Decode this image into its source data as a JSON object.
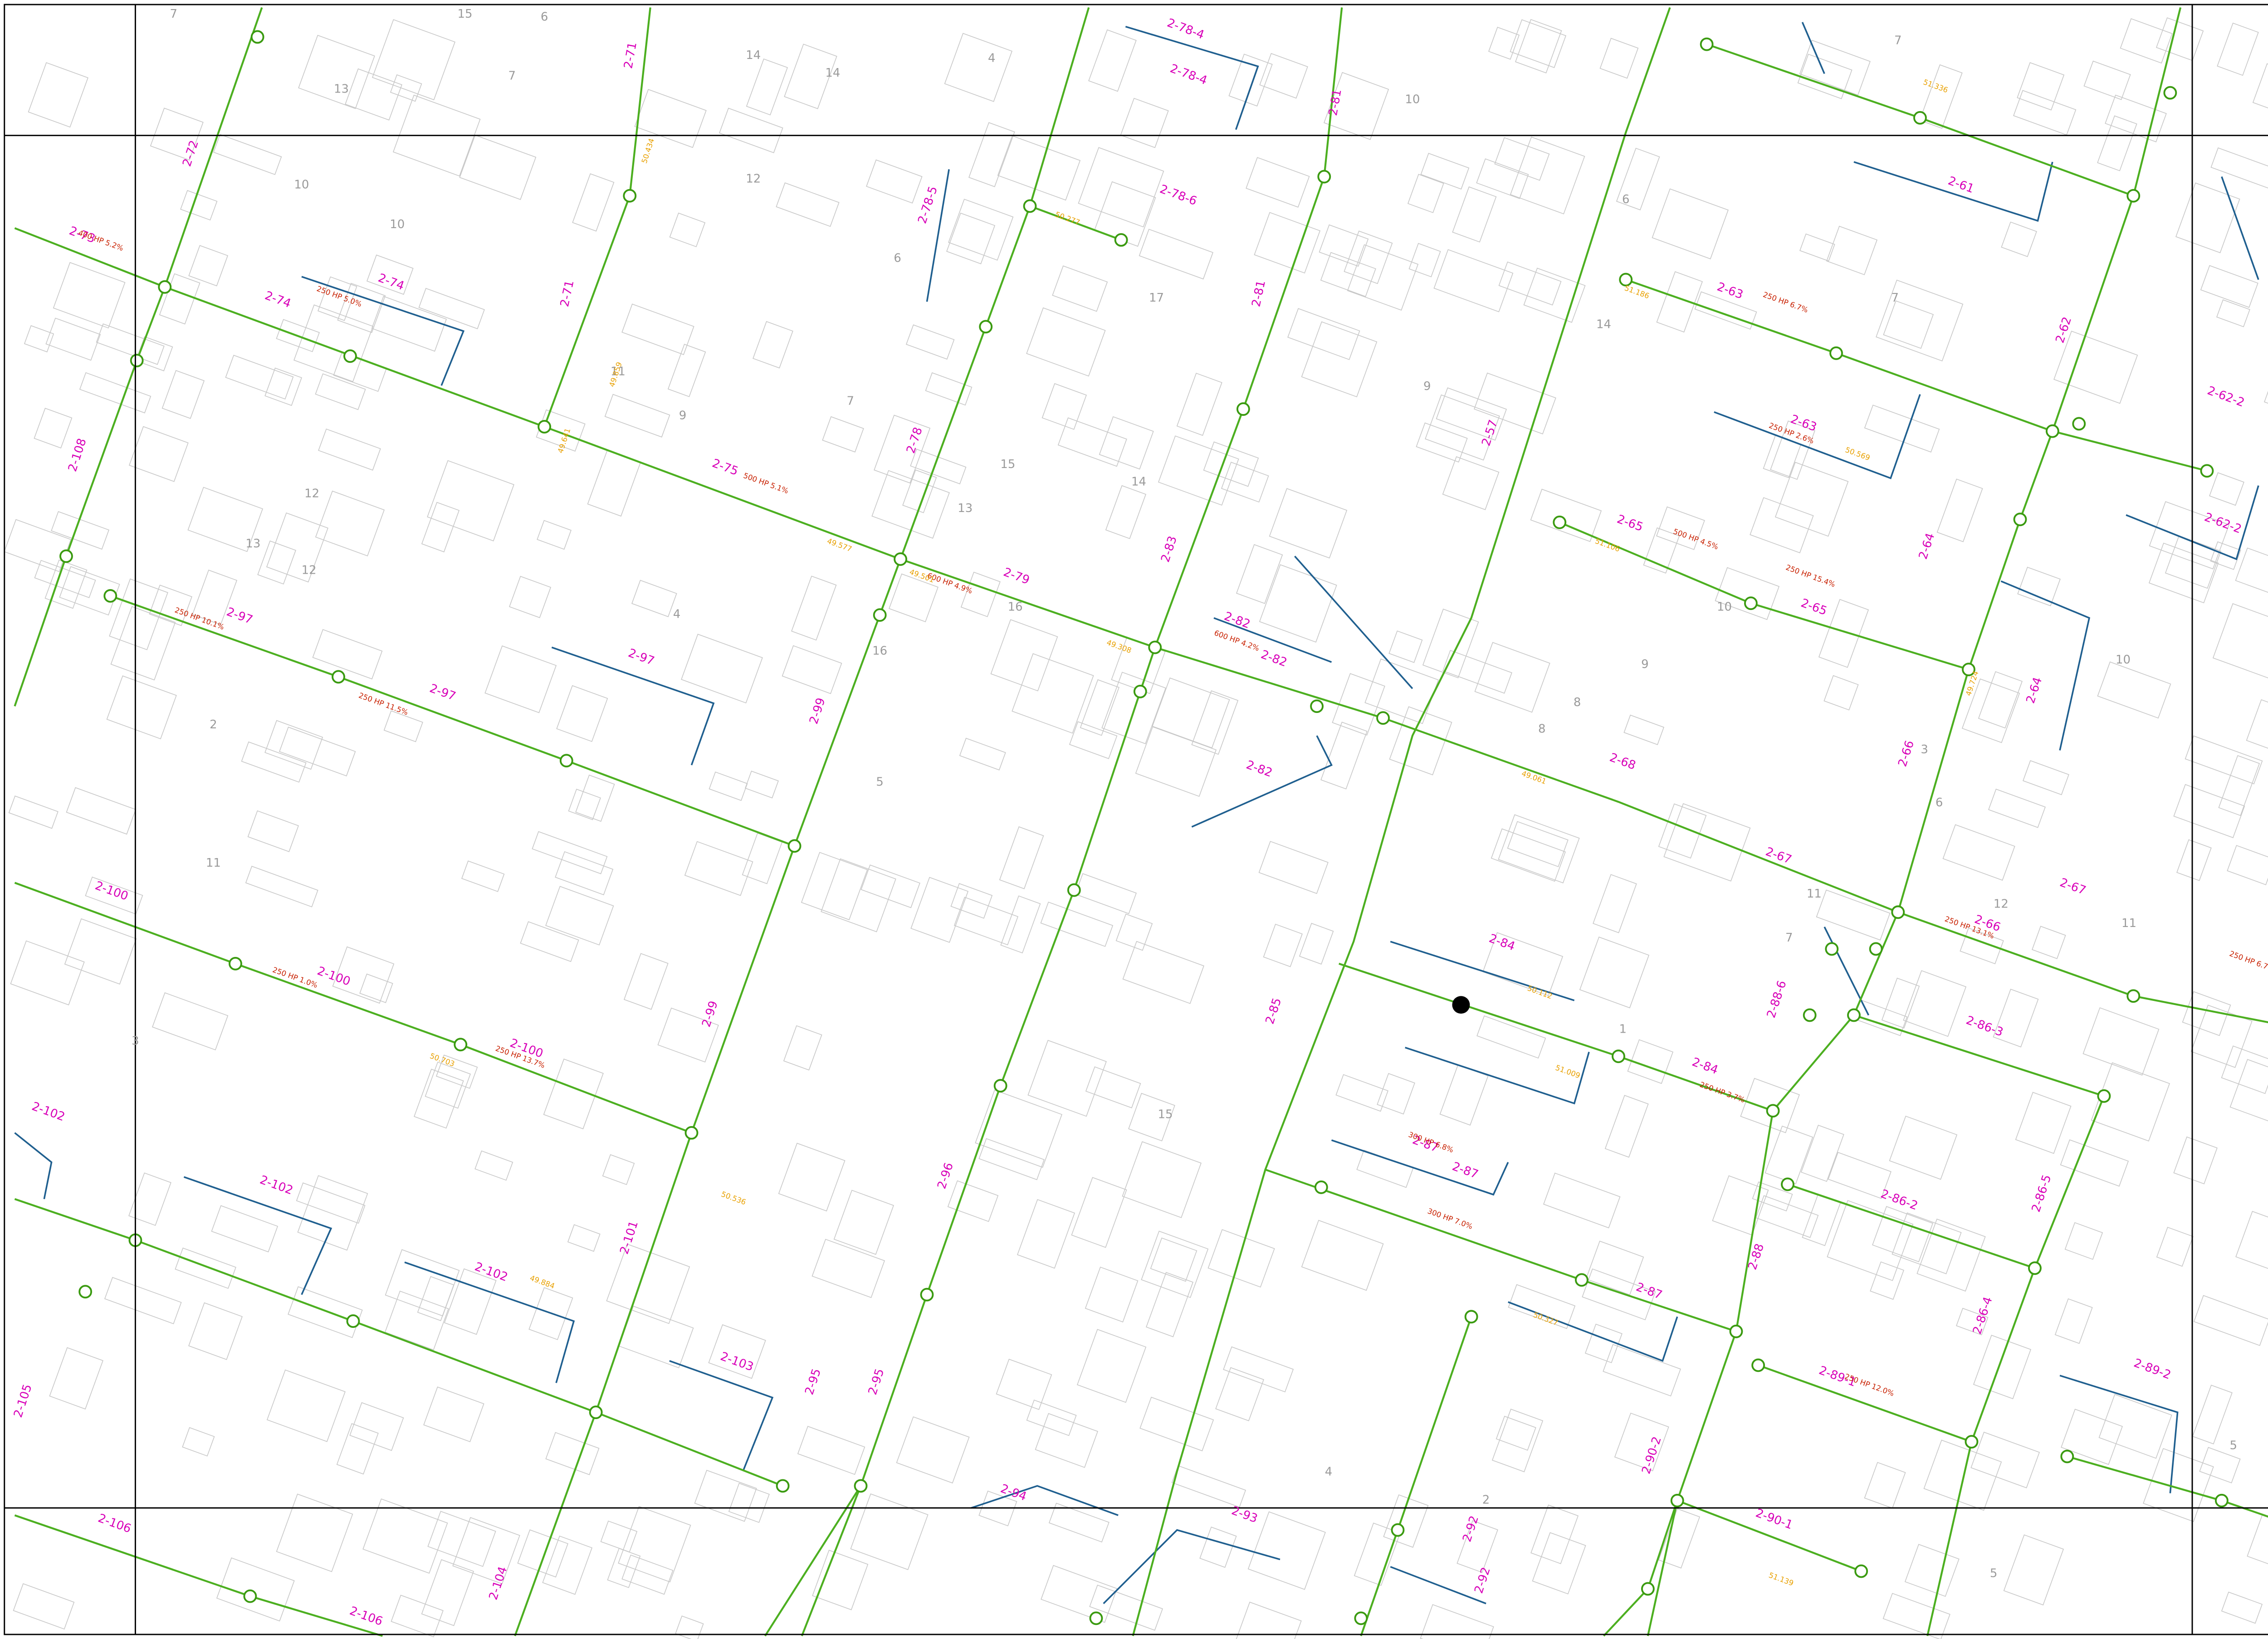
{
  "pipe_labels": [
    "2-72",
    "2-73",
    "2-74",
    "2-74",
    "2-75",
    "2-71",
    "2-71",
    "2-78",
    "2-78-5",
    "2-78-6",
    "2-78-4",
    "2-78-4",
    "2-79",
    "2-81",
    "2-81",
    "2-82",
    "2-82",
    "2-82",
    "2-57",
    "2-61",
    "2-63",
    "2-63",
    "2-62",
    "2-62-2",
    "2-62-2",
    "2-65",
    "2-65",
    "2-64",
    "2-64",
    "2-66",
    "2-68",
    "2-67",
    "2-67",
    "2-66",
    "2-84",
    "2-84",
    "2-86-3",
    "2-86-5",
    "2-86-2",
    "2-87",
    "2-87",
    "2-87",
    "2-88",
    "2-88-6",
    "2-89-2",
    "2-89-1",
    "2-90-2",
    "2-90-1",
    "2-92",
    "2-92",
    "2-93",
    "2-94",
    "2-95",
    "2-95",
    "2-96",
    "2-97",
    "2-97",
    "2-97",
    "2-99",
    "2-99",
    "2-100",
    "2-100",
    "2-100",
    "2-101",
    "2-102",
    "2-102",
    "2-102",
    "2-103",
    "2-104",
    "2-105",
    "2-106",
    "2-106",
    "2-108",
    "2-83",
    "2-85",
    "2-86-4"
  ],
  "pipe_specs": [
    "400 HP 5.2%",
    "250 HP 5.0%",
    "500 HP 5.1%",
    "600 HP 4.9%",
    "600 HP 4.2%",
    "250 HP 6.7%",
    "250 HP 2.6%",
    "500 HP 4.5%",
    "250 HP 10.1%",
    "250 HP 11.5%",
    "250 HP 1.0%",
    "250 HP 13.7%",
    "250 HP 15.4%",
    "250 HP 13.1%",
    "300 HP 6.8%",
    "300 HP 7.0%",
    "250 HP 3.7%",
    "250 HP 6.7%",
    "250 HP 12.0%"
  ],
  "block_numbers": [
    "7",
    "15",
    "6",
    "14",
    "14",
    "4",
    "7",
    "13",
    "10",
    "12",
    "10",
    "11",
    "9",
    "7",
    "6",
    "12",
    "13",
    "12",
    "4",
    "5",
    "2",
    "11",
    "3",
    "16",
    "17",
    "13",
    "14",
    "15",
    "16",
    "15",
    "10",
    "9",
    "6",
    "14",
    "7",
    "10",
    "11",
    "8",
    "9",
    "7",
    "3",
    "6",
    "10",
    "11",
    "12",
    "8",
    "5",
    "4",
    "2",
    "1",
    "7",
    "5"
  ],
  "elevations": [
    "49.577",
    "49.501",
    "50.434",
    "49.859",
    "51.186",
    "50.569",
    "49.641",
    "50.277",
    "51.106",
    "49.308",
    "50.112",
    "49.061",
    "51.336",
    "49.724",
    "50.536",
    "51.009",
    "49.884",
    "50.327",
    "51.139",
    "50.703"
  ]
}
